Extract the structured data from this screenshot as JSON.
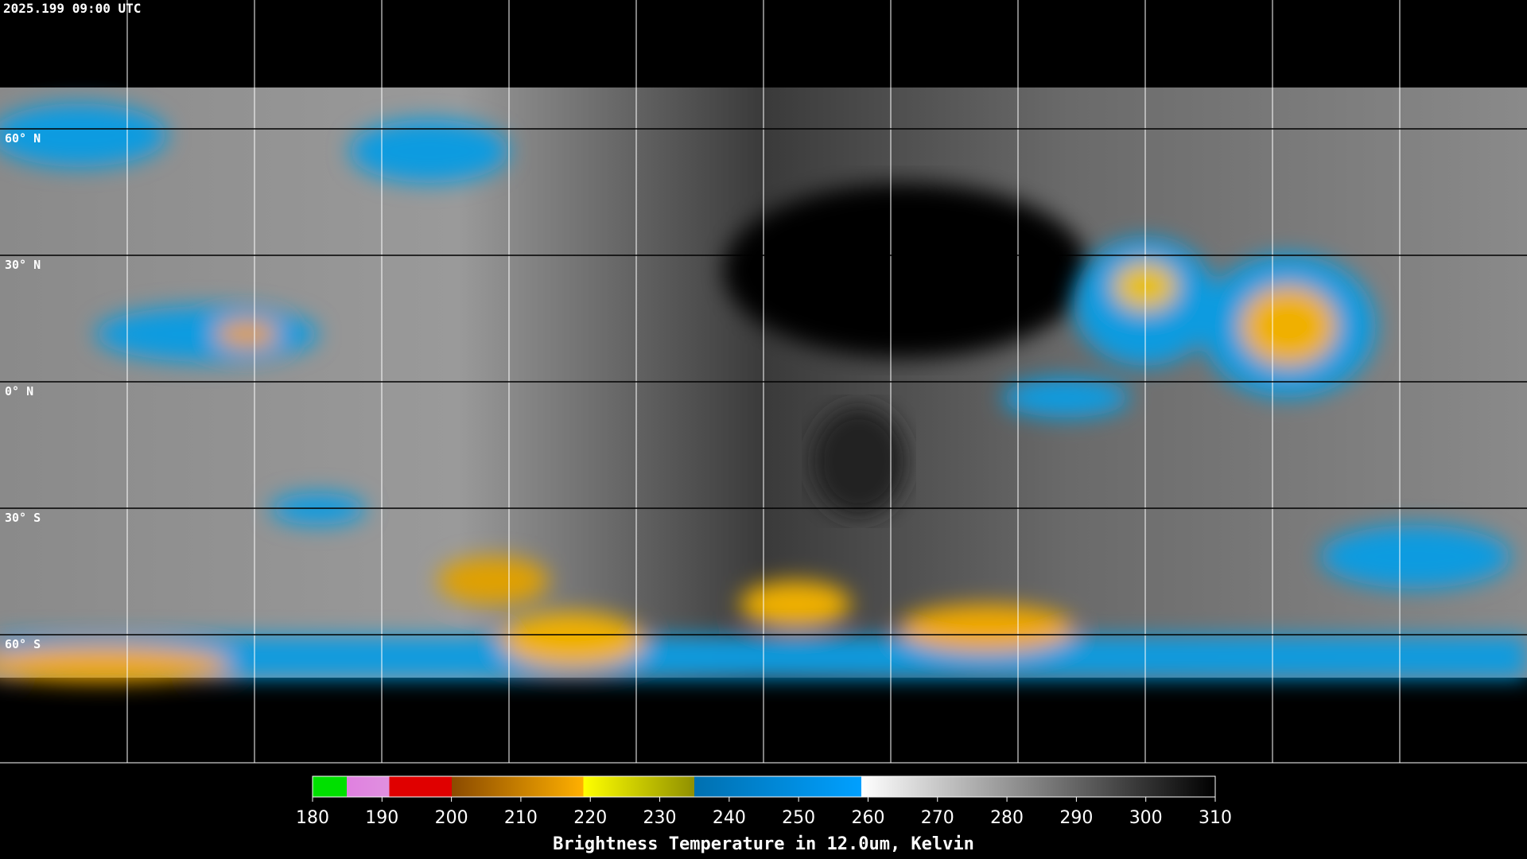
{
  "timestamp": "2025.199 09:00 UTC",
  "latitude_labels": [
    "60° N",
    "30° N",
    "0° N",
    "30° S",
    "60° S"
  ],
  "colorbar": {
    "title": "Brightness Temperature in 12.0um, Kelvin",
    "lim": [
      180,
      310
    ],
    "ticks": [
      180,
      190,
      200,
      210,
      220,
      230,
      240,
      250,
      260,
      270,
      280,
      290,
      300,
      310
    ]
  }
}
